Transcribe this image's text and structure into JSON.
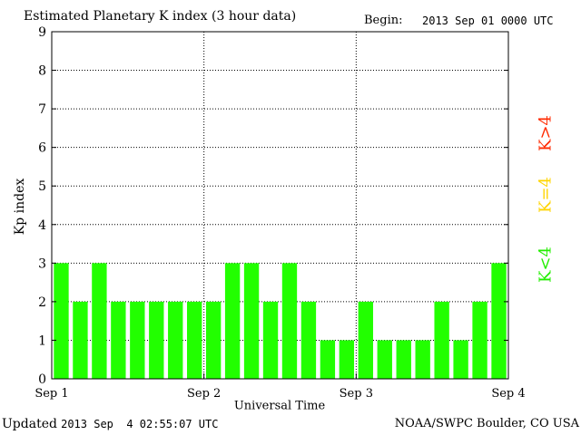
{
  "header": {
    "title": "Estimated Planetary K index (3 hour data)",
    "begin_label": "Begin:",
    "begin_value": "2013 Sep 01 0000 UTC"
  },
  "footer": {
    "updated_label": "Updated",
    "updated_value": "2013 Sep  4 02:55:07 UTC",
    "source": "NOAA/SWPC Boulder, CO USA"
  },
  "legend": [
    {
      "label": "K>4",
      "color": "#ff2a00"
    },
    {
      "label": "K=4",
      "color": "#ffd500"
    },
    {
      "label": "K<4",
      "color": "#22ee00"
    }
  ],
  "chart_data": {
    "type": "bar",
    "title": "Estimated Planetary K index (3 hour data)",
    "xlabel": "Universal Time",
    "ylabel": "Kp index",
    "ylim": [
      0,
      9
    ],
    "yticks": [
      0,
      1,
      2,
      3,
      4,
      5,
      6,
      7,
      8,
      9
    ],
    "xticks": [
      "Sep 1",
      "Sep 2",
      "Sep 3",
      "Sep 4"
    ],
    "grid": true,
    "bar_color": "#22ff00",
    "values": [
      3,
      2,
      3,
      2,
      2,
      2,
      2,
      2,
      2,
      3,
      3,
      2,
      3,
      2,
      1,
      1,
      2,
      1,
      1,
      1,
      2,
      1,
      2,
      3
    ]
  }
}
